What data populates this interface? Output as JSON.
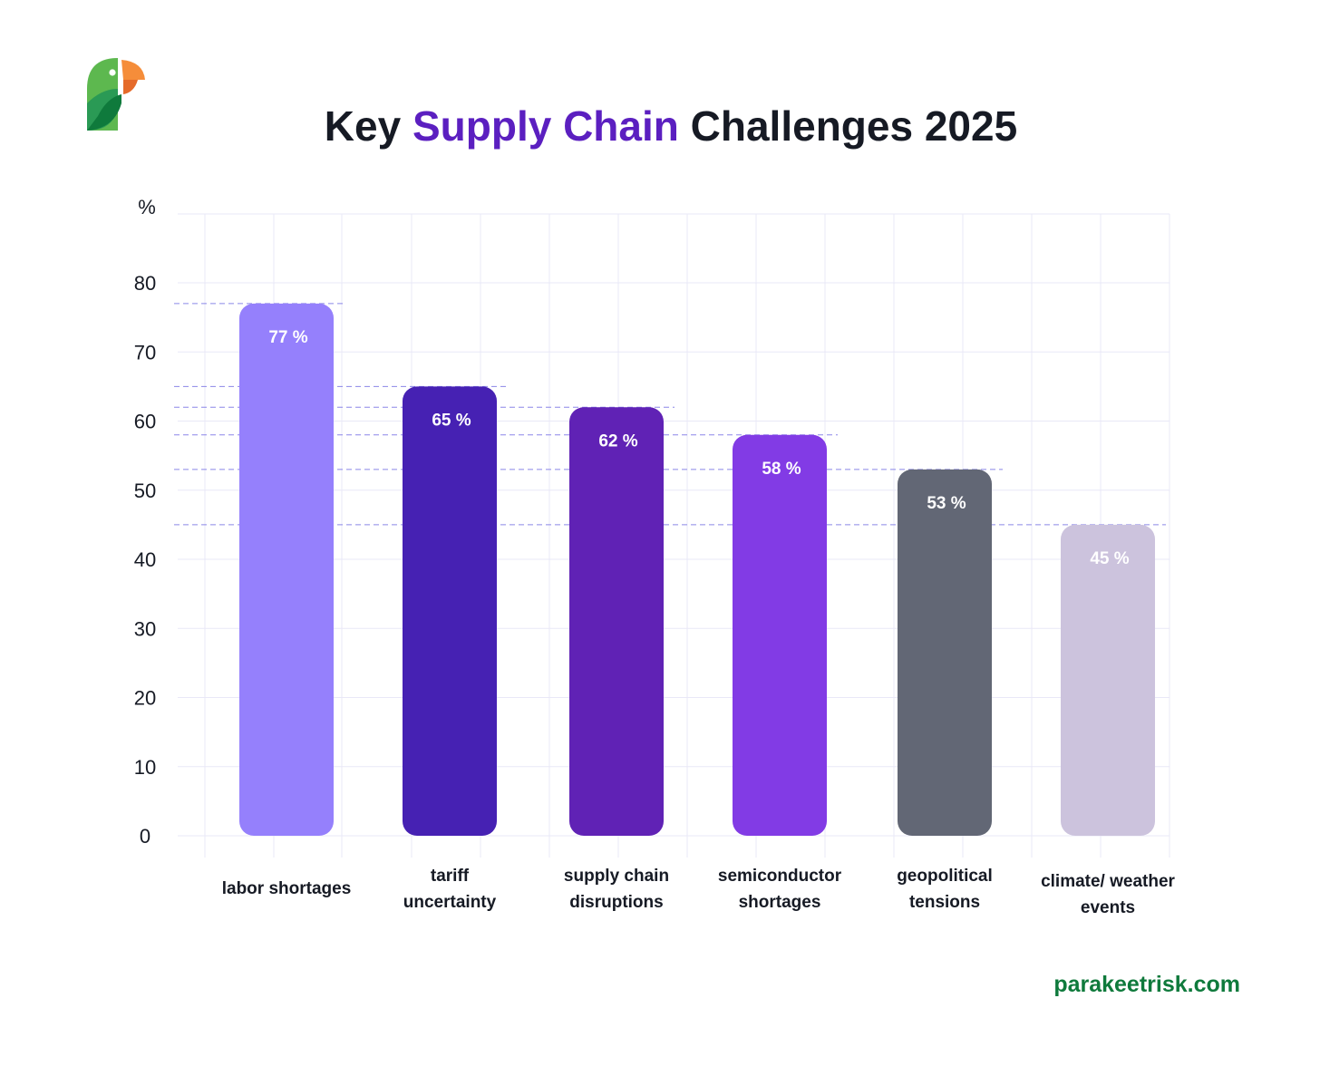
{
  "title": {
    "prefix": "Key",
    "accent": "Supply Chain",
    "suffix": "Challenges 2025"
  },
  "brand": {
    "site": "parakeetrisk.com",
    "logo_icon": "parakeet-logo-icon",
    "site_color": "#0f7a3c"
  },
  "chart_data": {
    "type": "bar",
    "ylabel": "%",
    "xlabel": "",
    "ylim": [
      0,
      80
    ],
    "yticks": [
      "0",
      "10",
      "20",
      "30",
      "40",
      "50",
      "60",
      "70",
      "80"
    ],
    "grid": true,
    "categories": [
      "labor shortages",
      "tariff\nuncertainty",
      "supply chain\ndisruptions",
      "semiconductor\nshortages",
      "geopolitical\ntensions",
      "climate/ weather\nevents"
    ],
    "values": [
      77,
      65,
      62,
      58,
      53,
      45
    ],
    "value_labels": [
      "77 %",
      "65 %",
      "62 %",
      "58 %",
      "53 %",
      "45 %"
    ],
    "colors": [
      "#9580fc",
      "#4621b3",
      "#6022b5",
      "#823be5",
      "#626775",
      "#ccc3dd"
    ],
    "reference_lines": true
  }
}
